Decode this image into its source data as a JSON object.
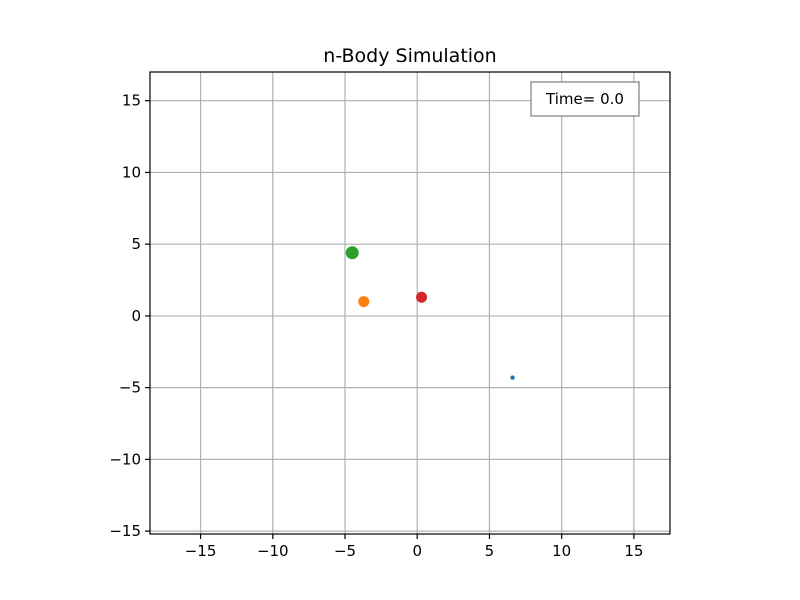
{
  "chart_data": {
    "type": "scatter",
    "title": "n-Body Simulation",
    "xlabel": "",
    "ylabel": "",
    "xlim": [
      -18.5,
      17.5
    ],
    "ylim": [
      -15.2,
      17.0
    ],
    "x_ticks": [
      -15,
      -10,
      -5,
      0,
      5,
      10,
      15
    ],
    "y_ticks": [
      -15,
      -10,
      -5,
      0,
      5,
      10,
      15
    ],
    "x_tick_labels": [
      "−15",
      "−10",
      "−5",
      "0",
      "5",
      "10",
      "15"
    ],
    "y_tick_labels": [
      "−15",
      "−10",
      "−5",
      "0",
      "5",
      "10",
      "15"
    ],
    "grid": true,
    "annotation": {
      "text": "Time= 0.0",
      "placement": "top-right"
    },
    "points": [
      {
        "x": 6.6,
        "y": -4.3,
        "color": "#1f77b4",
        "size": "tiny"
      },
      {
        "x": -3.7,
        "y": 1.0,
        "color": "#ff7f0e",
        "size": "medium"
      },
      {
        "x": -4.5,
        "y": 4.4,
        "color": "#2ca02c",
        "size": "large"
      },
      {
        "x": 0.3,
        "y": 1.3,
        "color": "#d62728",
        "size": "medium"
      }
    ]
  }
}
